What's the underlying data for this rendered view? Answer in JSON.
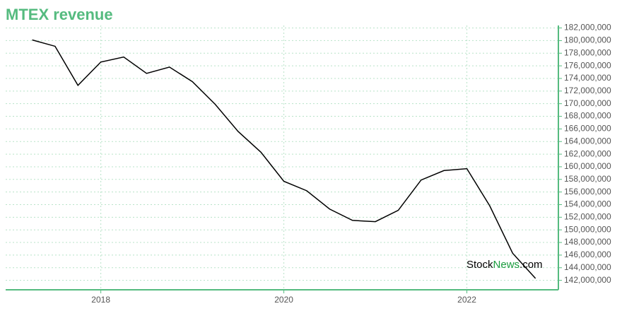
{
  "chart_data": {
    "type": "line",
    "title": "MTEX revenue",
    "watermark": [
      "Stock",
      "News",
      ".com"
    ],
    "x": [
      2017.25,
      2017.5,
      2017.75,
      2018,
      2018.25,
      2018.5,
      2018.75,
      2019,
      2019.25,
      2019.5,
      2019.75,
      2020,
      2020.25,
      2020.5,
      2020.75,
      2021,
      2021.25,
      2021.5,
      2021.75,
      2022,
      2022.25,
      2022.5,
      2022.75
    ],
    "series": [
      {
        "name": "MTEX revenue",
        "color": "#000000",
        "values": [
          180100000,
          179100000,
          172900000,
          176600000,
          177400000,
          174800000,
          175800000,
          173500000,
          169900000,
          165600000,
          162300000,
          157700000,
          156200000,
          153300000,
          151500000,
          151300000,
          153100000,
          157900000,
          159400000,
          159700000,
          153800000,
          146300000,
          142300000
        ]
      }
    ],
    "xlim": [
      2016.96,
      2023.0
    ],
    "xticks": [
      2018,
      2020,
      2022
    ],
    "ylim": [
      140500000,
      182400000
    ],
    "yticks": [
      {
        "value": 142000000,
        "label": "142,000,000"
      },
      {
        "value": 144000000,
        "label": "144,000,000"
      },
      {
        "value": 146000000,
        "label": "146,000,000"
      },
      {
        "value": 148000000,
        "label": "148,000,000"
      },
      {
        "value": 150000000,
        "label": "150,000,000"
      },
      {
        "value": 152000000,
        "label": "152,000,000"
      },
      {
        "value": 154000000,
        "label": "154,000,000"
      },
      {
        "value": 156000000,
        "label": "156,000,000"
      },
      {
        "value": 158000000,
        "label": "158,000,000"
      },
      {
        "value": 160000000,
        "label": "160,000,000"
      },
      {
        "value": 162000000,
        "label": "162,000,000"
      },
      {
        "value": 164000000,
        "label": "164,000,000"
      },
      {
        "value": 166000000,
        "label": "166,000,000"
      },
      {
        "value": 168000000,
        "label": "168,000,000"
      },
      {
        "value": 170000000,
        "label": "170,000,000"
      },
      {
        "value": 172000000,
        "label": "172,000,000"
      },
      {
        "value": 174000000,
        "label": "174,000,000"
      },
      {
        "value": 176000000,
        "label": "176,000,000"
      },
      {
        "value": 178000000,
        "label": "178,000,000"
      },
      {
        "value": 180000000,
        "label": "180,000,000"
      },
      {
        "value": 182000000,
        "label": "182,000,000"
      }
    ],
    "grid": true
  }
}
